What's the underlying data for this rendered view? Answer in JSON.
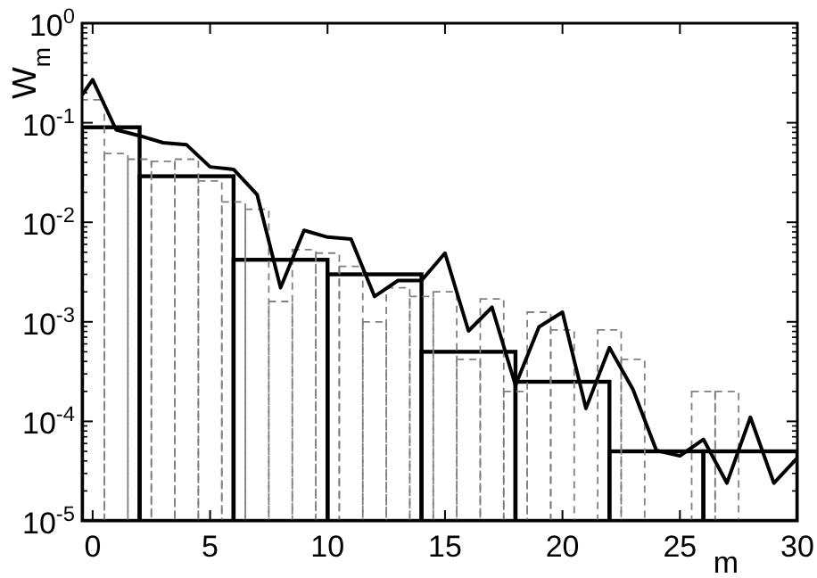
{
  "chart_data": {
    "type": "histogram",
    "xlabel": "m",
    "ylabel": "W$_{m}$",
    "xlim": [
      -0.45,
      30
    ],
    "xticks": [
      0,
      5,
      10,
      15,
      20,
      25,
      30
    ],
    "ylim": [
      1e-05,
      1
    ],
    "log": true,
    "yticks": [
      {
        "value": 1e-05,
        "label": "10$^{-5}$"
      },
      {
        "value": 0.0001,
        "label": "10$^{-4}$"
      },
      {
        "value": 0.001,
        "label": "10$^{-3}$"
      },
      {
        "value": 0.01,
        "label": "10$^{-2}$"
      },
      {
        "value": 0.1,
        "label": "10$^{-1}$"
      },
      {
        "value": 1,
        "label": "10$^{0}$"
      }
    ],
    "bins": [
      -0.45,
      2,
      6,
      10,
      14,
      18,
      22,
      26,
      30
    ],
    "values": [
      0.09,
      0.029,
      0.0042,
      0.003,
      0.0005,
      0.00025,
      5e-05,
      5e-05
    ],
    "color": "#000000",
    "series": [
      {
        "type": "bar",
        "color": "#808080",
        "line_style": "dashed",
        "x": [
          0,
          1,
          2,
          3,
          4,
          5,
          6,
          7,
          8,
          9,
          10,
          11,
          12,
          13,
          14,
          15,
          16,
          17,
          18,
          19,
          20,
          22,
          23,
          26,
          27
        ],
        "values": [
          0.17,
          0.049,
          0.043,
          0.041,
          0.043,
          0.026,
          0.016,
          0.0135,
          0.0016,
          0.0053,
          0.0049,
          0.0036,
          0.001,
          0.0022,
          0.0018,
          0.002,
          0.00042,
          0.0017,
          0.0002,
          0.00125,
          0.00083,
          0.00083,
          0.00042,
          0.0002,
          0.0002
        ]
      },
      {
        "type": "line",
        "color": "#000000",
        "line_style": "solid",
        "marker": "none",
        "x": [
          -0.45,
          0,
          1,
          2,
          3,
          4,
          5,
          6,
          7,
          8,
          9,
          10,
          11,
          12,
          13,
          14,
          15,
          16,
          17,
          18,
          19,
          20,
          21,
          22,
          23,
          24,
          25,
          26,
          27,
          28,
          29,
          30
        ],
        "values": [
          0.19,
          0.27,
          0.085,
          0.074,
          0.063,
          0.06,
          0.036,
          0.034,
          0.019,
          0.0022,
          0.0083,
          0.0071,
          0.0068,
          0.0018,
          0.0026,
          0.0026,
          0.0049,
          0.00081,
          0.0014,
          0.00023,
          0.00089,
          0.00125,
          0.000135,
          0.00055,
          0.00021,
          5.1e-05,
          4.5e-05,
          6.6e-05,
          2.4e-05,
          0.00011,
          2.4e-05,
          4.3e-05
        ]
      }
    ]
  }
}
